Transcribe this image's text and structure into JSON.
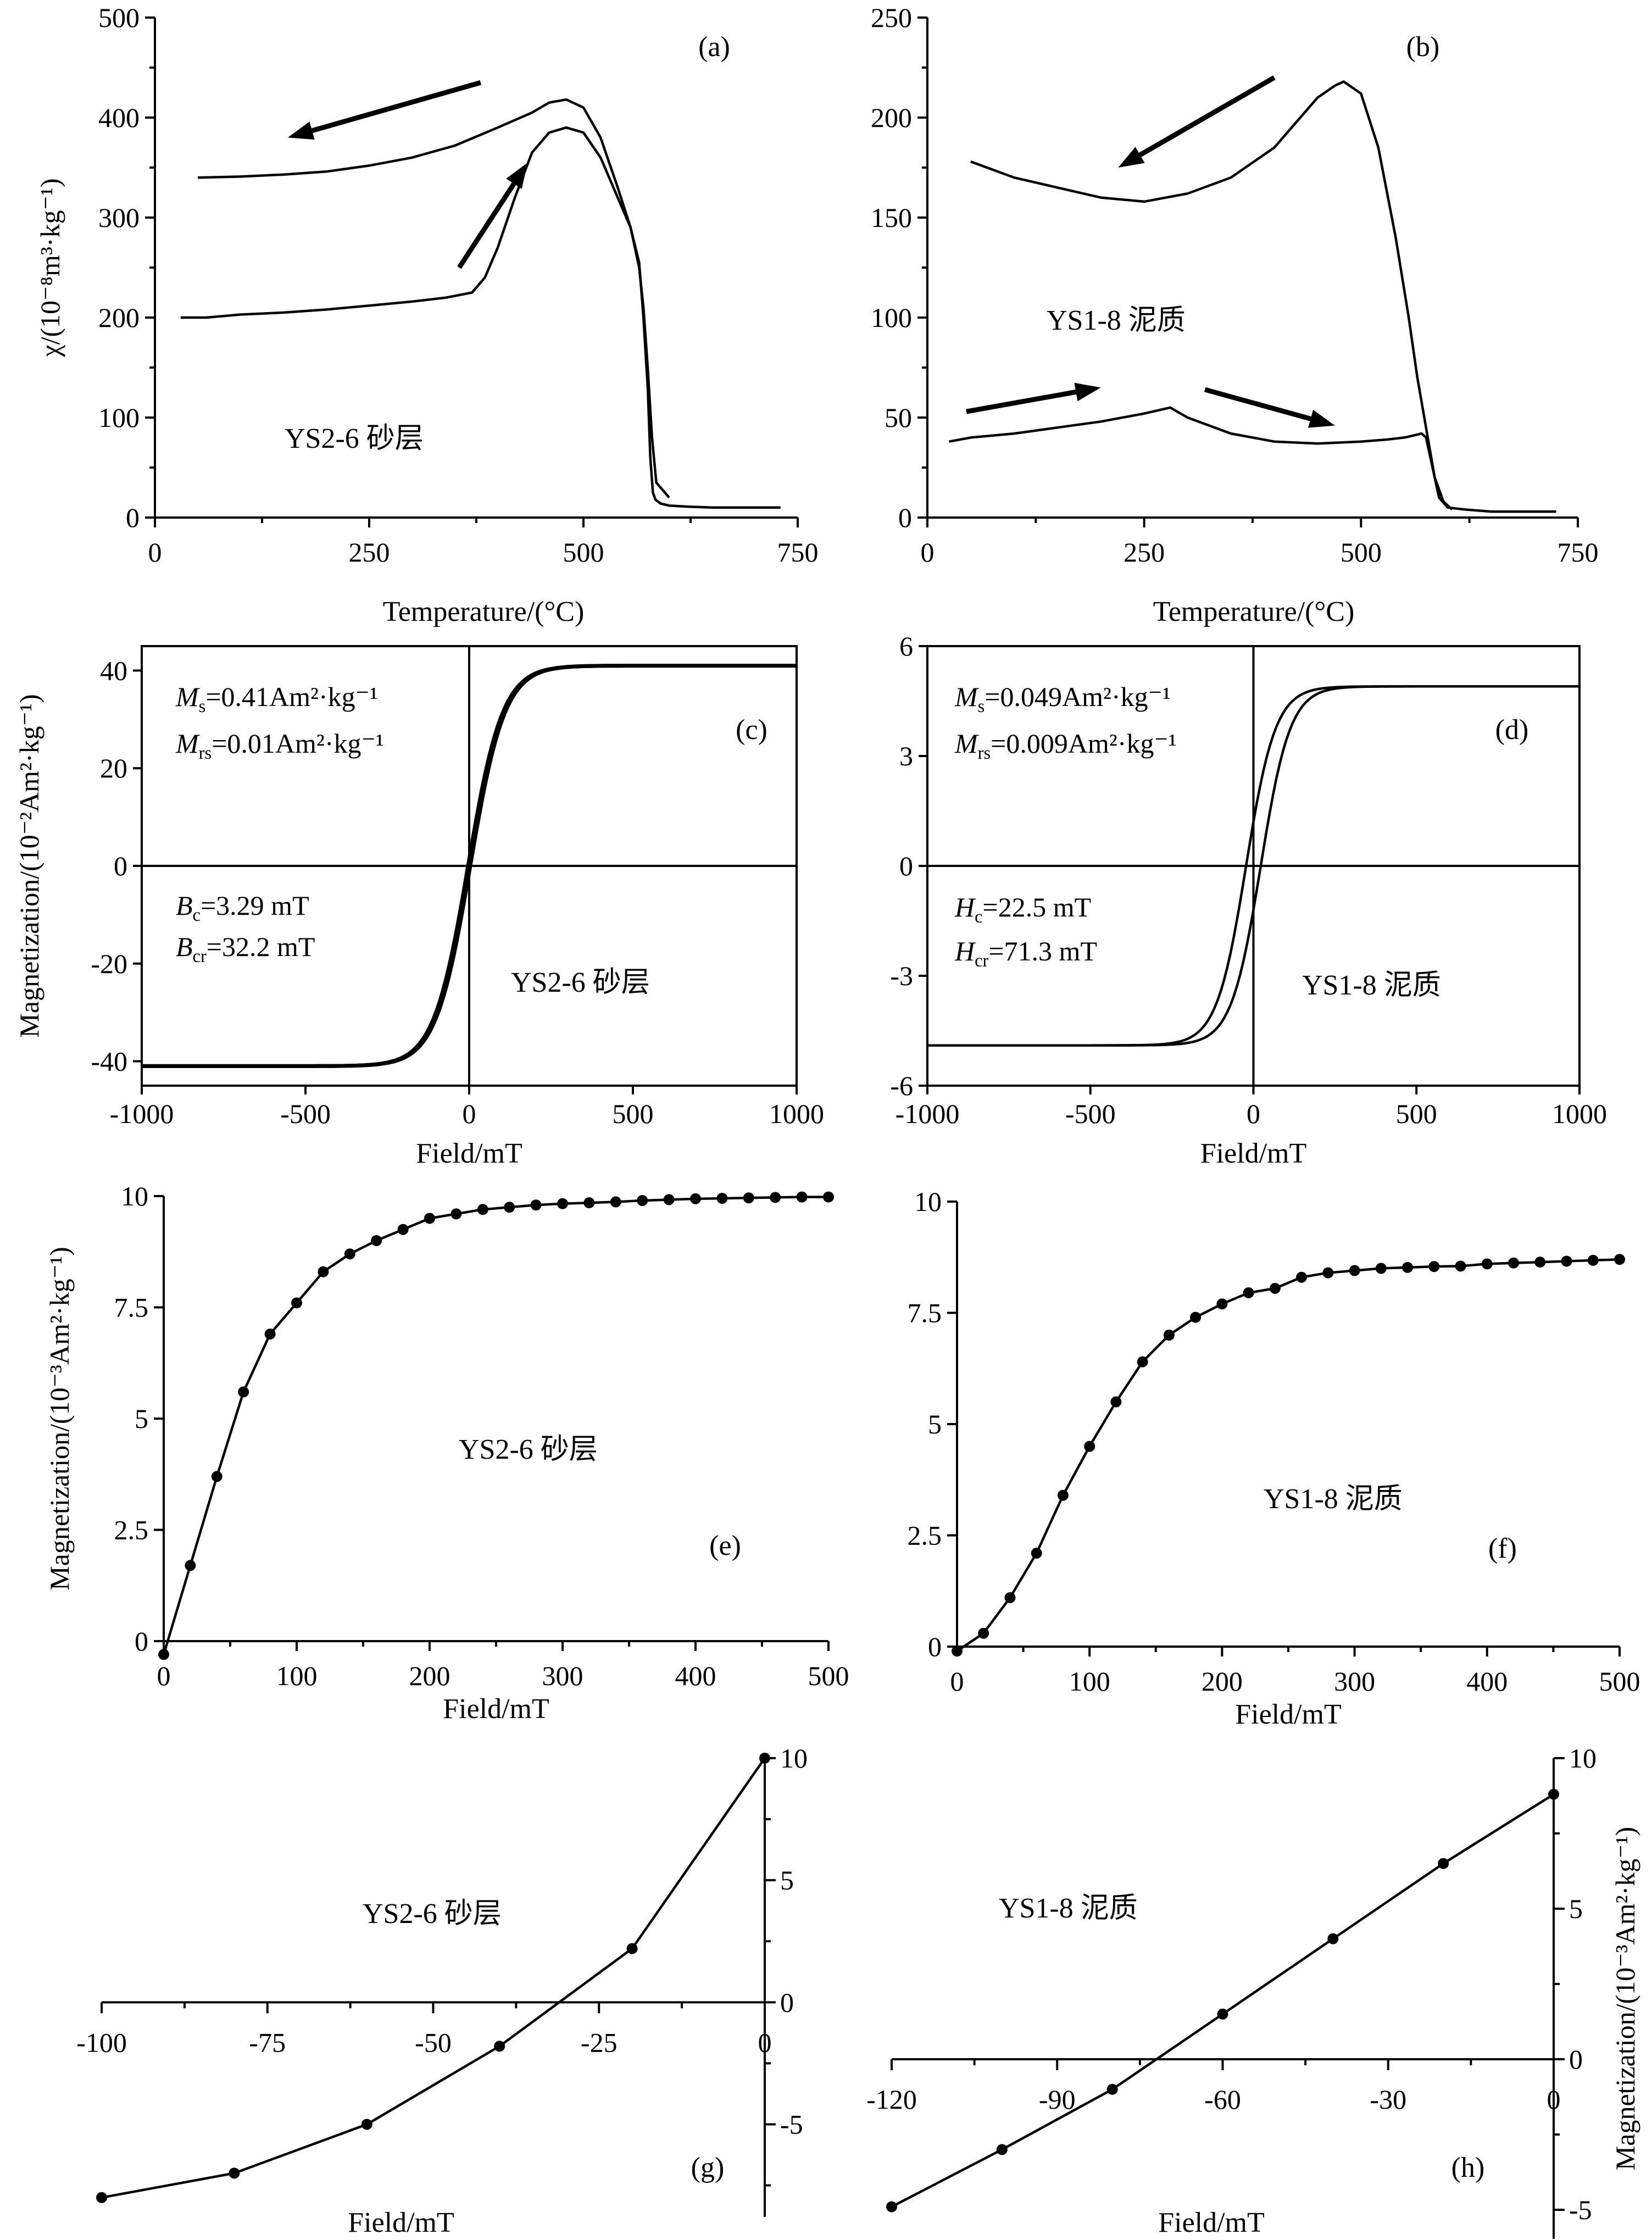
{
  "chart_data": [
    {
      "id": "a",
      "type": "line",
      "panel_label": "(a)",
      "sample_label": "YS2-6 砂层",
      "xlabel": "Temperature/(°C)",
      "ylabel": "χ/(10⁻⁸m³·kg⁻¹)",
      "xlim": [
        0,
        750
      ],
      "ylim": [
        0,
        500
      ],
      "xticks": [
        0,
        250,
        500,
        750
      ],
      "yticks": [
        0,
        100,
        200,
        300,
        400,
        500
      ],
      "series": [
        {
          "x": [
            30,
            60,
            100,
            150,
            200,
            250,
            300,
            340,
            370,
            385,
            400,
            420,
            440,
            460,
            480,
            500,
            520,
            540,
            555,
            565,
            570,
            575,
            578,
            581,
            584,
            590,
            600,
            620,
            650,
            700,
            730
          ],
          "y": [
            200,
            200,
            203,
            205,
            208,
            212,
            216,
            220,
            225,
            240,
            270,
            320,
            365,
            385,
            390,
            385,
            360,
            320,
            290,
            255,
            200,
            130,
            60,
            25,
            18,
            14,
            12,
            11,
            10,
            10,
            10
          ]
        },
        {
          "x": [
            50,
            100,
            150,
            200,
            250,
            300,
            350,
            400,
            440,
            460,
            480,
            500,
            520,
            540,
            555,
            565,
            570,
            575,
            580,
            585,
            600
          ],
          "y": [
            340,
            341,
            343,
            346,
            352,
            360,
            372,
            390,
            405,
            415,
            418,
            410,
            380,
            330,
            290,
            250,
            210,
            150,
            80,
            35,
            20
          ]
        }
      ],
      "arrows": [
        {
          "from": [
            355,
            250
          ],
          "to": [
            435,
            355
          ]
        },
        {
          "from": [
            380,
            435
          ],
          "to": [
            155,
            380
          ]
        }
      ]
    },
    {
      "id": "b",
      "type": "line",
      "panel_label": "(b)",
      "sample_label": "YS1-8  泥质",
      "xlabel": "Temperature/(°C)",
      "ylabel": "",
      "xlim": [
        0,
        750
      ],
      "ylim": [
        0,
        250
      ],
      "xticks": [
        0,
        250,
        500,
        750
      ],
      "yticks": [
        0,
        50,
        100,
        150,
        200,
        250
      ],
      "series": [
        {
          "x": [
            25,
            50,
            100,
            150,
            200,
            250,
            280,
            300,
            350,
            400,
            450,
            500,
            530,
            550,
            560,
            570,
            575,
            580,
            585,
            590,
            600,
            620,
            650,
            700,
            725
          ],
          "y": [
            38,
            40,
            42,
            45,
            48,
            52,
            55,
            50,
            42,
            38,
            37,
            38,
            39,
            40,
            41,
            42,
            40,
            30,
            20,
            10,
            5,
            4,
            3,
            3,
            3
          ]
        },
        {
          "x": [
            50,
            100,
            150,
            200,
            250,
            300,
            350,
            400,
            430,
            450,
            470,
            480,
            500,
            520,
            540,
            555,
            565,
            575,
            585,
            595,
            605
          ],
          "y": [
            178,
            170,
            165,
            160,
            158,
            162,
            170,
            185,
            200,
            210,
            216,
            218,
            212,
            185,
            140,
            100,
            70,
            45,
            20,
            8,
            4
          ]
        }
      ],
      "arrows": [
        {
          "from": [
            45,
            53
          ],
          "to": [
            200,
            65
          ]
        },
        {
          "from": [
            320,
            64
          ],
          "to": [
            470,
            46
          ]
        },
        {
          "from": [
            400,
            220
          ],
          "to": [
            220,
            175
          ]
        }
      ]
    },
    {
      "id": "c",
      "type": "line",
      "panel_label": "(c)",
      "sample_label": "YS2-6 砂层",
      "xlabel": "Field/mT",
      "ylabel": "Magnetization/(10⁻²Am²·kg⁻¹)",
      "xlim": [
        -1000,
        1000
      ],
      "ylim": [
        -45,
        45
      ],
      "xticks": [
        -1000,
        -500,
        0,
        500,
        1000
      ],
      "yticks": [
        -40,
        -20,
        0,
        20,
        40
      ],
      "annotations": {
        "Ms": "0.41Am²·kg⁻¹",
        "Mrs": "0.01Am²·kg⁻¹",
        "Bc": "3.29 mT",
        "Bcr": "32.2 mT"
      },
      "loop": {
        "Ms": 41,
        "H0": 105,
        "Hc": 3.29
      }
    },
    {
      "id": "d",
      "type": "line",
      "panel_label": "(d)",
      "sample_label": "YS1-8 泥质",
      "xlabel": "Field/mT",
      "ylabel": "",
      "xlim": [
        -1000,
        1000
      ],
      "ylim": [
        -6,
        6
      ],
      "xticks": [
        -1000,
        -500,
        0,
        500,
        1000
      ],
      "yticks": [
        -6,
        -3,
        0,
        3,
        6
      ],
      "annotations": {
        "Ms": "0.049Am²·kg⁻¹",
        "Mrs": "0.009Am²·kg⁻¹",
        "Hc": "22.5 mT",
        "Hcr": "71.3 mT"
      },
      "loop": {
        "Ms": 4.9,
        "H0": 90,
        "Hc": 22.5
      }
    },
    {
      "id": "e",
      "type": "line",
      "panel_label": "(e)",
      "sample_label": "YS2-6 砂层",
      "xlabel": "Field/mT",
      "ylabel": "Magnetization/(10⁻³Am²·kg⁻¹)",
      "xlim": [
        0,
        500
      ],
      "ylim": [
        0,
        10
      ],
      "xticks": [
        0,
        100,
        200,
        300,
        400,
        500
      ],
      "yticks": [
        0,
        2.5,
        5,
        7.5,
        10
      ],
      "x": [
        0,
        20,
        40,
        60,
        80,
        100,
        120,
        140,
        160,
        180,
        200,
        220,
        240,
        260,
        280,
        300,
        320,
        340,
        360,
        380,
        400,
        420,
        440,
        460,
        480,
        500
      ],
      "y": [
        -0.3,
        1.7,
        3.7,
        5.6,
        6.9,
        7.6,
        8.3,
        8.7,
        9.0,
        9.25,
        9.5,
        9.6,
        9.7,
        9.75,
        9.8,
        9.83,
        9.85,
        9.87,
        9.9,
        9.92,
        9.94,
        9.95,
        9.96,
        9.97,
        9.98,
        9.98
      ]
    },
    {
      "id": "f",
      "type": "line",
      "panel_label": "(f)",
      "sample_label": "YS1-8 泥质",
      "xlabel": "Field/mT",
      "ylabel": "",
      "xlim": [
        0,
        500
      ],
      "ylim": [
        0,
        10
      ],
      "xticks": [
        0,
        100,
        200,
        300,
        400,
        500
      ],
      "yticks": [
        0,
        2.5,
        5,
        7.5,
        10
      ],
      "x": [
        0,
        20,
        40,
        60,
        80,
        100,
        120,
        140,
        160,
        180,
        200,
        220,
        240,
        260,
        280,
        300,
        320,
        340,
        360,
        380,
        400,
        420,
        440,
        460,
        480,
        500
      ],
      "y": [
        -0.1,
        0.3,
        1.1,
        2.1,
        3.4,
        4.5,
        5.5,
        6.4,
        7.0,
        7.4,
        7.7,
        7.95,
        8.05,
        8.3,
        8.4,
        8.45,
        8.5,
        8.52,
        8.54,
        8.55,
        8.6,
        8.62,
        8.64,
        8.66,
        8.68,
        8.7
      ]
    },
    {
      "id": "g",
      "type": "line",
      "panel_label": "(g)",
      "sample_label": "YS2-6 砂层",
      "xlabel": "Field/mT",
      "ylabel": "",
      "xlim": [
        -100,
        0
      ],
      "ylim": [
        -8.5,
        10
      ],
      "xticks": [
        -100,
        -75,
        -50,
        -25,
        0
      ],
      "yticks": [
        -5,
        0,
        5,
        10
      ],
      "x": [
        -100,
        -80,
        -60,
        -40,
        -20,
        0
      ],
      "y": [
        -8.0,
        -7.0,
        -5.0,
        -1.8,
        2.2,
        10.0
      ]
    },
    {
      "id": "h",
      "type": "line",
      "panel_label": "(h)",
      "sample_label": "YS1-8 泥质",
      "xlabel": "Field/mT",
      "ylabel": "Magnetization/(10⁻³Am²·kg⁻¹)",
      "xlim": [
        -120,
        0
      ],
      "ylim": [
        -5,
        10
      ],
      "xticks": [
        -120,
        -90,
        -60,
        -30,
        0
      ],
      "yticks": [
        -5,
        0,
        5,
        10
      ],
      "x": [
        -120,
        -100,
        -80,
        -60,
        -40,
        -20,
        0
      ],
      "y": [
        -4.9,
        -3.0,
        -1.0,
        1.5,
        4.0,
        6.5,
        8.8
      ]
    }
  ]
}
